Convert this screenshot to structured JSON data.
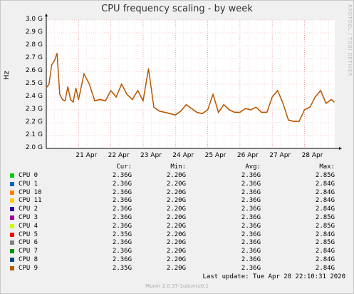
{
  "title": "CPU frequency scaling - by week",
  "side_text": "RRDTOOL / TOBI OETIKER",
  "footer": "Munin 2.0.37-1ubuntu0.1",
  "last_update": "Last update: Tue Apr 28 22:10:31 2020",
  "columns": {
    "cur": "Cur:",
    "min": "Min:",
    "avg": "Avg:",
    "max": "Max:"
  },
  "legend": [
    {
      "name": "CPU 0",
      "color": "#00cc00",
      "cur": "2.36G",
      "min": "2.20G",
      "avg": "2.36G",
      "max": "2.85G"
    },
    {
      "name": "CPU 1",
      "color": "#0066b3",
      "cur": "2.36G",
      "min": "2.20G",
      "avg": "2.36G",
      "max": "2.84G"
    },
    {
      "name": "CPU 10",
      "color": "#ff8000",
      "cur": "2.36G",
      "min": "2.20G",
      "avg": "2.36G",
      "max": "2.84G"
    },
    {
      "name": "CPU 11",
      "color": "#ffcc00",
      "cur": "2.36G",
      "min": "2.20G",
      "avg": "2.36G",
      "max": "2.84G"
    },
    {
      "name": "CPU 2",
      "color": "#330099",
      "cur": "2.36G",
      "min": "2.20G",
      "avg": "2.36G",
      "max": "2.84G"
    },
    {
      "name": "CPU 3",
      "color": "#990099",
      "cur": "2.36G",
      "min": "2.20G",
      "avg": "2.36G",
      "max": "2.85G"
    },
    {
      "name": "CPU 4",
      "color": "#ccff00",
      "cur": "2.36G",
      "min": "2.20G",
      "avg": "2.36G",
      "max": "2.85G"
    },
    {
      "name": "CPU 5",
      "color": "#ff0000",
      "cur": "2.35G",
      "min": "2.20G",
      "avg": "2.36G",
      "max": "2.84G"
    },
    {
      "name": "CPU 6",
      "color": "#808080",
      "cur": "2.36G",
      "min": "2.20G",
      "avg": "2.36G",
      "max": "2.85G"
    },
    {
      "name": "CPU 7",
      "color": "#008f00",
      "cur": "2.36G",
      "min": "2.20G",
      "avg": "2.36G",
      "max": "2.84G"
    },
    {
      "name": "CPU 8",
      "color": "#00487d",
      "cur": "2.36G",
      "min": "2.20G",
      "avg": "2.36G",
      "max": "2.84G"
    },
    {
      "name": "CPU 9",
      "color": "#b35a00",
      "cur": "2.35G",
      "min": "2.20G",
      "avg": "2.36G",
      "max": "2.84G"
    }
  ],
  "chart_data": {
    "type": "line",
    "title": "CPU frequency scaling - by week",
    "ylabel": "Hz",
    "ylim": [
      2.0,
      3.0
    ],
    "y_unit": "G",
    "yticks": [
      "2.0 G",
      "2.1 G",
      "2.2 G",
      "2.3 G",
      "2.4 G",
      "2.5 G",
      "2.6 G",
      "2.7 G",
      "2.8 G",
      "2.9 G",
      "3.0 G"
    ],
    "xticks": [
      "21 Apr",
      "22 Apr",
      "23 Apr",
      "24 Apr",
      "25 Apr",
      "26 Apr",
      "27 Apr",
      "28 Apr"
    ],
    "grid": true,
    "line_color": "#b35a00",
    "x": [
      "2020-04-20 00:00",
      "2020-04-20 02:00",
      "2020-04-20 04:00",
      "2020-04-20 06:00",
      "2020-04-20 08:00",
      "2020-04-20 10:00",
      "2020-04-20 12:00",
      "2020-04-20 14:00",
      "2020-04-20 16:00",
      "2020-04-20 18:00",
      "2020-04-20 20:00",
      "2020-04-20 22:00",
      "2020-04-21 00:00",
      "2020-04-21 04:00",
      "2020-04-21 08:00",
      "2020-04-21 12:00",
      "2020-04-21 16:00",
      "2020-04-21 20:00",
      "2020-04-22 00:00",
      "2020-04-22 04:00",
      "2020-04-22 08:00",
      "2020-04-22 12:00",
      "2020-04-22 16:00",
      "2020-04-22 20:00",
      "2020-04-23 00:00",
      "2020-04-23 04:00",
      "2020-04-23 08:00",
      "2020-04-23 12:00",
      "2020-04-23 16:00",
      "2020-04-23 20:00",
      "2020-04-24 00:00",
      "2020-04-24 04:00",
      "2020-04-24 08:00",
      "2020-04-24 12:00",
      "2020-04-24 16:00",
      "2020-04-24 20:00",
      "2020-04-25 00:00",
      "2020-04-25 04:00",
      "2020-04-25 08:00",
      "2020-04-25 12:00",
      "2020-04-25 16:00",
      "2020-04-25 20:00",
      "2020-04-26 00:00",
      "2020-04-26 04:00",
      "2020-04-26 08:00",
      "2020-04-26 12:00",
      "2020-04-26 16:00",
      "2020-04-26 20:00",
      "2020-04-27 00:00",
      "2020-04-27 04:00",
      "2020-04-27 08:00",
      "2020-04-27 12:00",
      "2020-04-27 16:00",
      "2020-04-27 20:00",
      "2020-04-28 00:00",
      "2020-04-28 04:00",
      "2020-04-28 08:00",
      "2020-04-28 12:00",
      "2020-04-28 16:00",
      "2020-04-28 20:00",
      "2020-04-28 22:00"
    ],
    "series": [
      {
        "values": [
          2.47,
          2.5,
          2.65,
          2.68,
          2.74,
          2.42,
          2.38,
          2.37,
          2.48,
          2.38,
          2.36,
          2.47,
          2.38,
          2.58,
          2.5,
          2.37,
          2.38,
          2.37,
          2.45,
          2.4,
          2.5,
          2.42,
          2.38,
          2.45,
          2.37,
          2.62,
          2.32,
          2.29,
          2.28,
          2.27,
          2.26,
          2.29,
          2.34,
          2.31,
          2.28,
          2.27,
          2.3,
          2.42,
          2.28,
          2.34,
          2.3,
          2.28,
          2.28,
          2.31,
          2.3,
          2.32,
          2.28,
          2.28,
          2.4,
          2.45,
          2.35,
          2.22,
          2.21,
          2.21,
          2.3,
          2.32,
          2.4,
          2.45,
          2.35,
          2.38,
          2.36
        ]
      }
    ]
  }
}
